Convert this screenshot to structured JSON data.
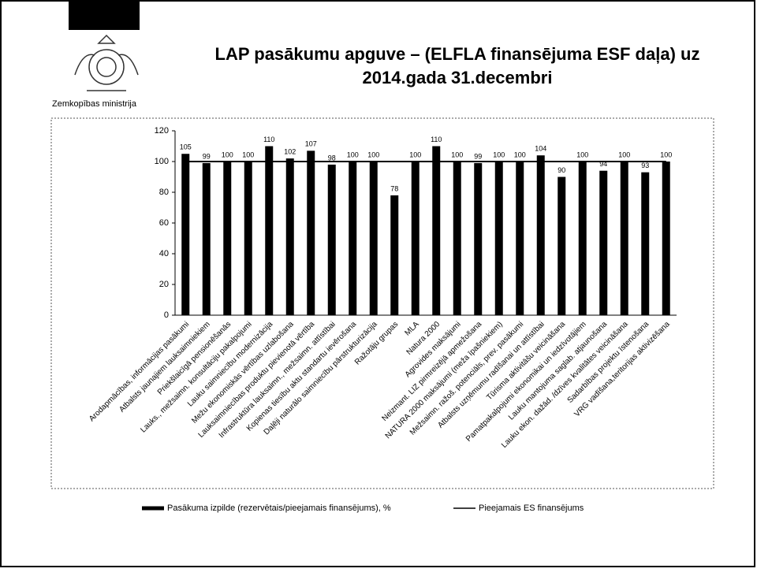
{
  "organization": "Zemkopības ministrija",
  "chart_data": {
    "type": "bar",
    "title": [
      "LAP pasākumu apguve – (ELFLA finansējuma ESF daļa) uz",
      "2014.gada 31.decembri"
    ],
    "categories": [
      "Arodapmācības, informācijas pasākumi",
      "Atbalsts jaunajiem lauksaimniekiem",
      "Priekšlaicīgā pensionēšanās",
      "Lauks., mežsaimn. konsultāciju pakalpojumi",
      "Lauku saimniecību modernizācija",
      "Mežu ekonomiskās vērtības uzlabošana",
      "Lauksaimniecības produktu pievienotā vērtība",
      "Infrastruktūra lauksaimn., mežsaimn. attīstībai",
      "Kopienas tiesību aktu standartu ievērošana",
      "Daļēji naturālo saimniecību pārstrukturizācija",
      "Ražotāju grupas",
      "MLA",
      "Natura 2000",
      "Agrovides maksājumi",
      "Neizmant. LIZ pirmreizējā apmežošana",
      "NATURA 2000 maksājumi (meža īpašniekiem)",
      "Mežsaimn. ražoš. potenciāls, prev. pasākumi",
      "Atbalsts uzņēmumu radīšanai un attīstībai",
      "Tūrisma aktivitāšu veicināšana",
      "Pamatpakalpojumi ekonomikai un iedzīvotājiem",
      "Lauku mantojuma saglab. atjaunošana",
      "Lauku ekon. dažād. /dzīves kvalitātes veicināšana",
      "Sadarbības projektu īstenošana",
      "VRG vadīšana,teritorijas aktivizēšana"
    ],
    "series": [
      {
        "name": "Pasākuma izpilde (rezervētais/pieejamais finansējums), %",
        "color": "#000000",
        "kind": "bar",
        "values": [
          105,
          99,
          100,
          100,
          110,
          102,
          107,
          98,
          100,
          100,
          78,
          100,
          110,
          100,
          99,
          100,
          100,
          104,
          90,
          100,
          94,
          100,
          93,
          100
        ]
      },
      {
        "name": "Pieejamais ES finansējums",
        "color": "#000000",
        "kind": "line",
        "values": [
          100,
          100,
          100,
          100,
          100,
          100,
          100,
          100,
          100,
          100,
          100,
          100,
          100,
          100,
          100,
          100,
          100,
          100,
          100,
          100,
          100,
          100,
          100,
          100
        ]
      }
    ],
    "ylim": [
      0,
      120
    ],
    "yticks": [
      0,
      20,
      40,
      60,
      80,
      100,
      120
    ]
  }
}
